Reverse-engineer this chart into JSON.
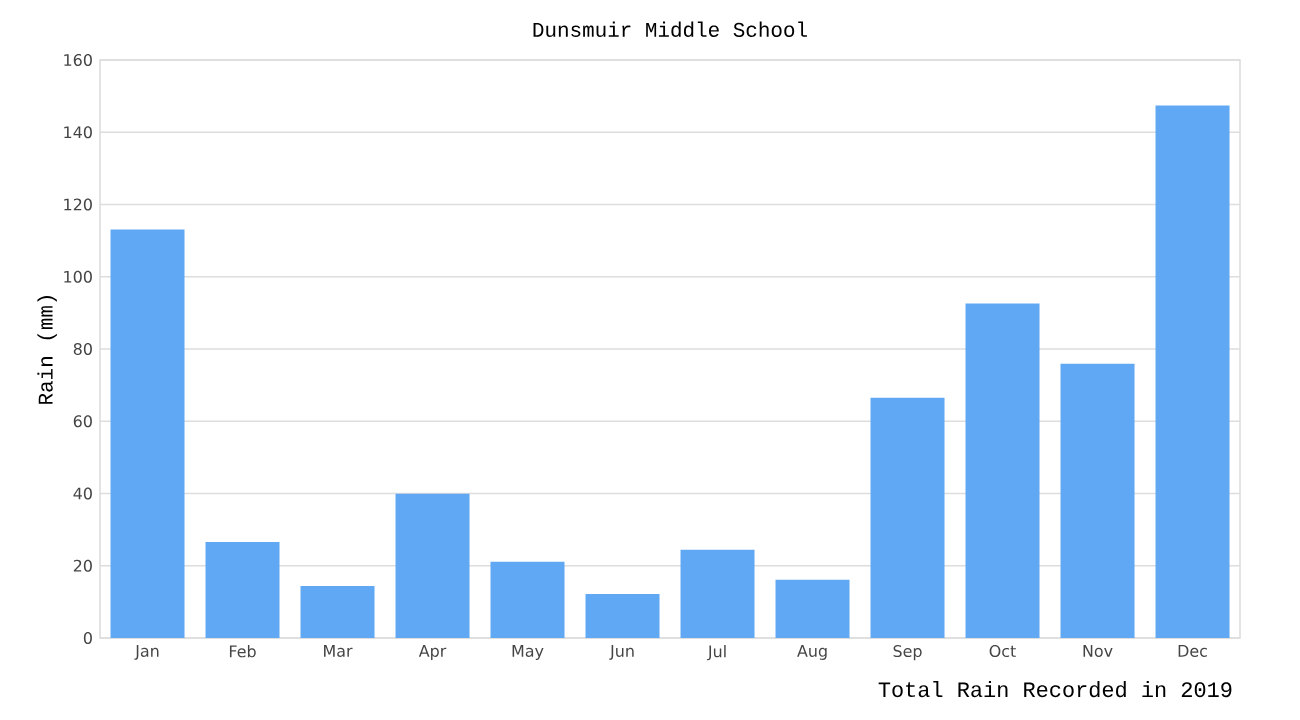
{
  "chart_data": {
    "type": "bar",
    "title": "Dunsmuir Middle School",
    "xlabel": "Total Rain Recorded in 2019",
    "ylabel": "Rain (mm)",
    "categories": [
      "Jan",
      "Feb",
      "Mar",
      "Apr",
      "May",
      "Jun",
      "Jul",
      "Aug",
      "Sep",
      "Oct",
      "Nov",
      "Dec"
    ],
    "values": [
      113.1,
      26.6,
      14.4,
      39.9,
      21.1,
      12.2,
      24.4,
      16.1,
      66.5,
      92.6,
      75.9,
      147.4
    ],
    "color": "#60a8f4",
    "ylim": [
      0,
      160
    ],
    "yticks": [
      0,
      20,
      40,
      60,
      80,
      100,
      120,
      140,
      160
    ],
    "grid": "y"
  }
}
